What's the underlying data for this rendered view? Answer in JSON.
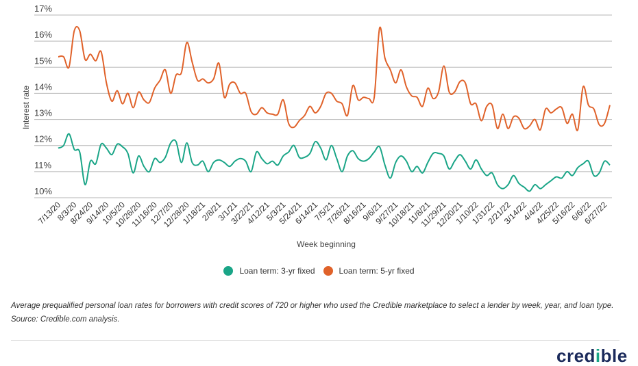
{
  "chart_data": {
    "type": "line",
    "title": "",
    "xlabel": "Week beginning",
    "ylabel": "Interest rate",
    "ylim": [
      10,
      17
    ],
    "yticks": [
      "10%",
      "11%",
      "12%",
      "13%",
      "14%",
      "15%",
      "16%",
      "17%"
    ],
    "ytick_values": [
      10,
      11,
      12,
      13,
      14,
      15,
      16,
      17
    ],
    "grid": true,
    "legend_position": "bottom-center",
    "x_tick_labels": [
      "7/13/20",
      "8/3/20",
      "8/24/20",
      "9/14/20",
      "10/5/20",
      "10/26/20",
      "11/16/20",
      "12/7/20",
      "12/28/20",
      "1/18/21",
      "2/8/21",
      "3/1/21",
      "3/22/21",
      "4/12/21",
      "5/3/21",
      "5/24/21",
      "6/14/21",
      "7/5/21",
      "7/26/21",
      "8/16/21",
      "9/6/21",
      "9/27/21",
      "10/18/21",
      "11/8/21",
      "11/29/21",
      "12/20/21",
      "1/10/22",
      "1/31/22",
      "2/21/22",
      "3/14/22",
      "4/4/22",
      "4/25/22",
      "5/16/22",
      "6/6/22",
      "6/27/22"
    ],
    "x_tick_every_n_weeks": 3,
    "series": [
      {
        "name": "Loan term: 3-yr fixed",
        "color": "#1aa587",
        "values": [
          11.9,
          12.0,
          12.45,
          11.85,
          11.75,
          10.5,
          11.4,
          11.3,
          12.05,
          11.9,
          11.65,
          12.05,
          11.95,
          11.7,
          10.95,
          11.6,
          11.2,
          11.0,
          11.5,
          11.35,
          11.55,
          12.1,
          12.15,
          11.35,
          12.1,
          11.35,
          11.25,
          11.4,
          11.0,
          11.35,
          11.45,
          11.35,
          11.2,
          11.4,
          11.5,
          11.4,
          11.0,
          11.75,
          11.5,
          11.3,
          11.4,
          11.25,
          11.6,
          11.75,
          12.0,
          11.55,
          11.55,
          11.7,
          12.15,
          11.9,
          11.45,
          12.0,
          11.5,
          11.0,
          11.6,
          11.8,
          11.5,
          11.4,
          11.5,
          11.75,
          11.95,
          11.25,
          10.75,
          11.35,
          11.6,
          11.4,
          11.0,
          11.2,
          10.95,
          11.35,
          11.7,
          11.7,
          11.6,
          11.1,
          11.4,
          11.65,
          11.4,
          11.1,
          11.45,
          11.1,
          10.85,
          10.95,
          10.5,
          10.35,
          10.5,
          10.85,
          10.55,
          10.4,
          10.25,
          10.5,
          10.35,
          10.5,
          10.65,
          10.8,
          10.75,
          11.0,
          10.85,
          11.15,
          11.3,
          11.4,
          10.85,
          10.95,
          11.4,
          11.25
        ]
      },
      {
        "name": "Loan term: 5-yr fixed",
        "color": "#e0622a",
        "values": [
          15.4,
          15.4,
          15.0,
          16.4,
          16.4,
          15.3,
          15.5,
          15.25,
          15.6,
          14.4,
          13.7,
          14.1,
          13.6,
          14.0,
          13.45,
          14.05,
          13.75,
          13.65,
          14.2,
          14.5,
          14.9,
          14.0,
          14.7,
          14.8,
          15.95,
          15.2,
          14.5,
          14.55,
          14.4,
          14.55,
          15.15,
          13.85,
          14.35,
          14.4,
          14.0,
          14.0,
          13.3,
          13.2,
          13.45,
          13.25,
          13.2,
          13.2,
          13.75,
          12.85,
          12.7,
          12.95,
          13.15,
          13.5,
          13.25,
          13.5,
          14.0,
          14.0,
          13.7,
          13.6,
          13.15,
          14.3,
          13.75,
          13.85,
          13.8,
          13.85,
          16.5,
          15.35,
          14.9,
          14.4,
          14.9,
          14.25,
          13.9,
          13.85,
          13.5,
          14.2,
          13.8,
          14.05,
          15.05,
          14.05,
          14.05,
          14.45,
          14.4,
          13.6,
          13.6,
          12.95,
          13.5,
          13.55,
          12.65,
          13.2,
          12.65,
          13.1,
          13.05,
          12.65,
          12.75,
          13.0,
          12.6,
          13.4,
          13.25,
          13.4,
          13.45,
          12.85,
          13.2,
          12.6,
          14.25,
          13.55,
          13.4,
          12.8,
          12.85,
          13.55
        ]
      }
    ]
  },
  "legend": {
    "items": [
      {
        "label": "Loan term: 3-yr fixed",
        "color": "#1aa587"
      },
      {
        "label": "Loan term: 5-yr fixed",
        "color": "#e0622a"
      }
    ]
  },
  "caption": "Average prequalified personal loan rates for borrowers with credit scores of 720 or higher who used the Credible marketplace to select a lender by week, year, and loan type. Source: Credible.com analysis.",
  "logo": {
    "text_before": "cred",
    "dot_letter": "i",
    "text_after": "ble"
  }
}
